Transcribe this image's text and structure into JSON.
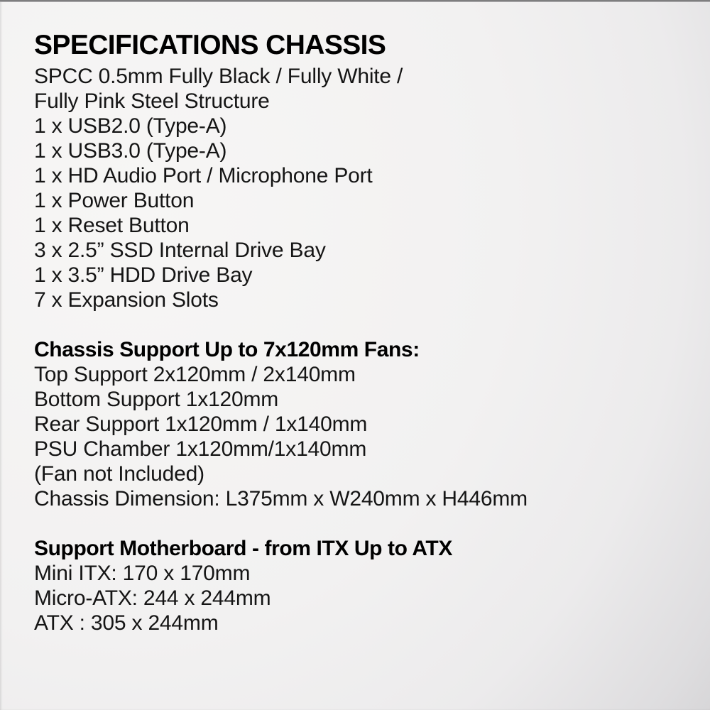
{
  "page": {
    "title": "SPECIFICATIONS CHASSIS"
  },
  "chassis": {
    "lines": [
      "SPCC 0.5mm Fully Black / Fully White /",
      "Fully Pink Steel Structure",
      "1 x USB2.0 (Type-A)",
      "1 x USB3.0 (Type-A)",
      "1 x HD Audio Port / Microphone Port",
      "1 x Power Button",
      "1 x Reset Button",
      "3 x 2.5” SSD Internal Drive Bay",
      "1 x 3.5” HDD Drive Bay",
      "7 x Expansion Slots"
    ]
  },
  "fans": {
    "heading": "Chassis Support Up to 7x120mm Fans:",
    "lines": [
      "Top Support 2x120mm / 2x140mm",
      "Bottom Support 1x120mm",
      "Rear Support 1x120mm / 1x140mm",
      "PSU Chamber 1x120mm/1x140mm",
      "(Fan not Included)",
      "Chassis Dimension: L375mm x W240mm x H446mm"
    ]
  },
  "motherboard": {
    "heading": "Support Motherboard - from ITX Up to ATX",
    "lines": [
      "Mini ITX: 170 x 170mm",
      "Micro-ATX: 244 x 244mm",
      "ATX : 305 x 244mm"
    ]
  },
  "colors": {
    "background_light": "#f7f6f5",
    "background_dark": "#bebdbf",
    "top_edge_line": "#6f6f6f",
    "text": "#151515",
    "heading_text": "#000000"
  }
}
